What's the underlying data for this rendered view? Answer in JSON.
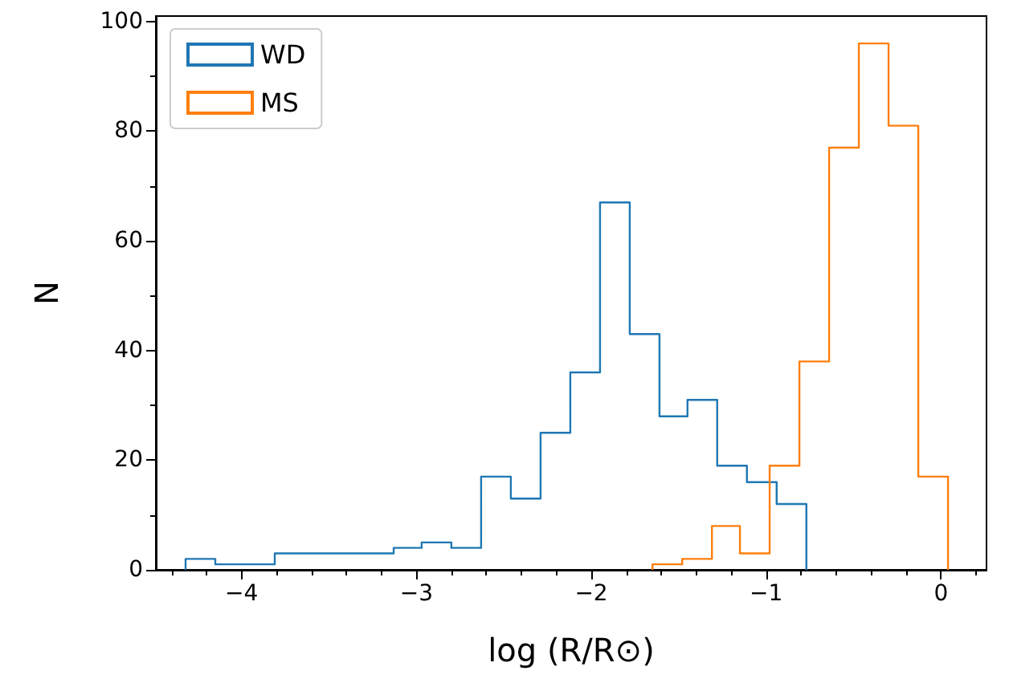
{
  "chart_data": {
    "type": "step",
    "xlabel": "log (R/R⊙)",
    "ylabel": "N",
    "xlim": [
      -4.49,
      0.26
    ],
    "xticks": [
      -4,
      -3,
      -2,
      -1,
      0
    ],
    "ylim": [
      0,
      101
    ],
    "yticks": [
      0,
      20,
      40,
      60,
      80,
      100
    ],
    "legend": "top left",
    "series": [
      {
        "name": "WD",
        "color": "#1f77b4",
        "x": [
          -4.32,
          -4.32,
          -4.15,
          -3.98,
          -3.81,
          -3.64,
          -3.47,
          -3.3,
          -3.13,
          -2.97,
          -2.8,
          -2.63,
          -2.46,
          -2.29,
          -2.12,
          -1.95,
          -1.78,
          -1.61,
          -1.45,
          -1.28,
          -1.11,
          -0.94,
          -0.77
        ],
        "values": [
          0,
          2,
          1,
          1,
          3,
          3,
          3,
          3,
          4,
          5,
          4,
          17,
          13,
          25,
          36,
          67,
          43,
          28,
          31,
          19,
          16,
          12,
          0
        ]
      },
      {
        "name": "MS",
        "color": "#ff7f0e",
        "x": [
          -1.65,
          -1.65,
          -1.48,
          -1.31,
          -1.15,
          -0.98,
          -0.81,
          -0.64,
          -0.47,
          -0.3,
          -0.13,
          0.04
        ],
        "values": [
          0,
          1,
          2,
          8,
          3,
          19,
          38,
          77,
          96,
          81,
          17,
          0
        ]
      }
    ]
  }
}
